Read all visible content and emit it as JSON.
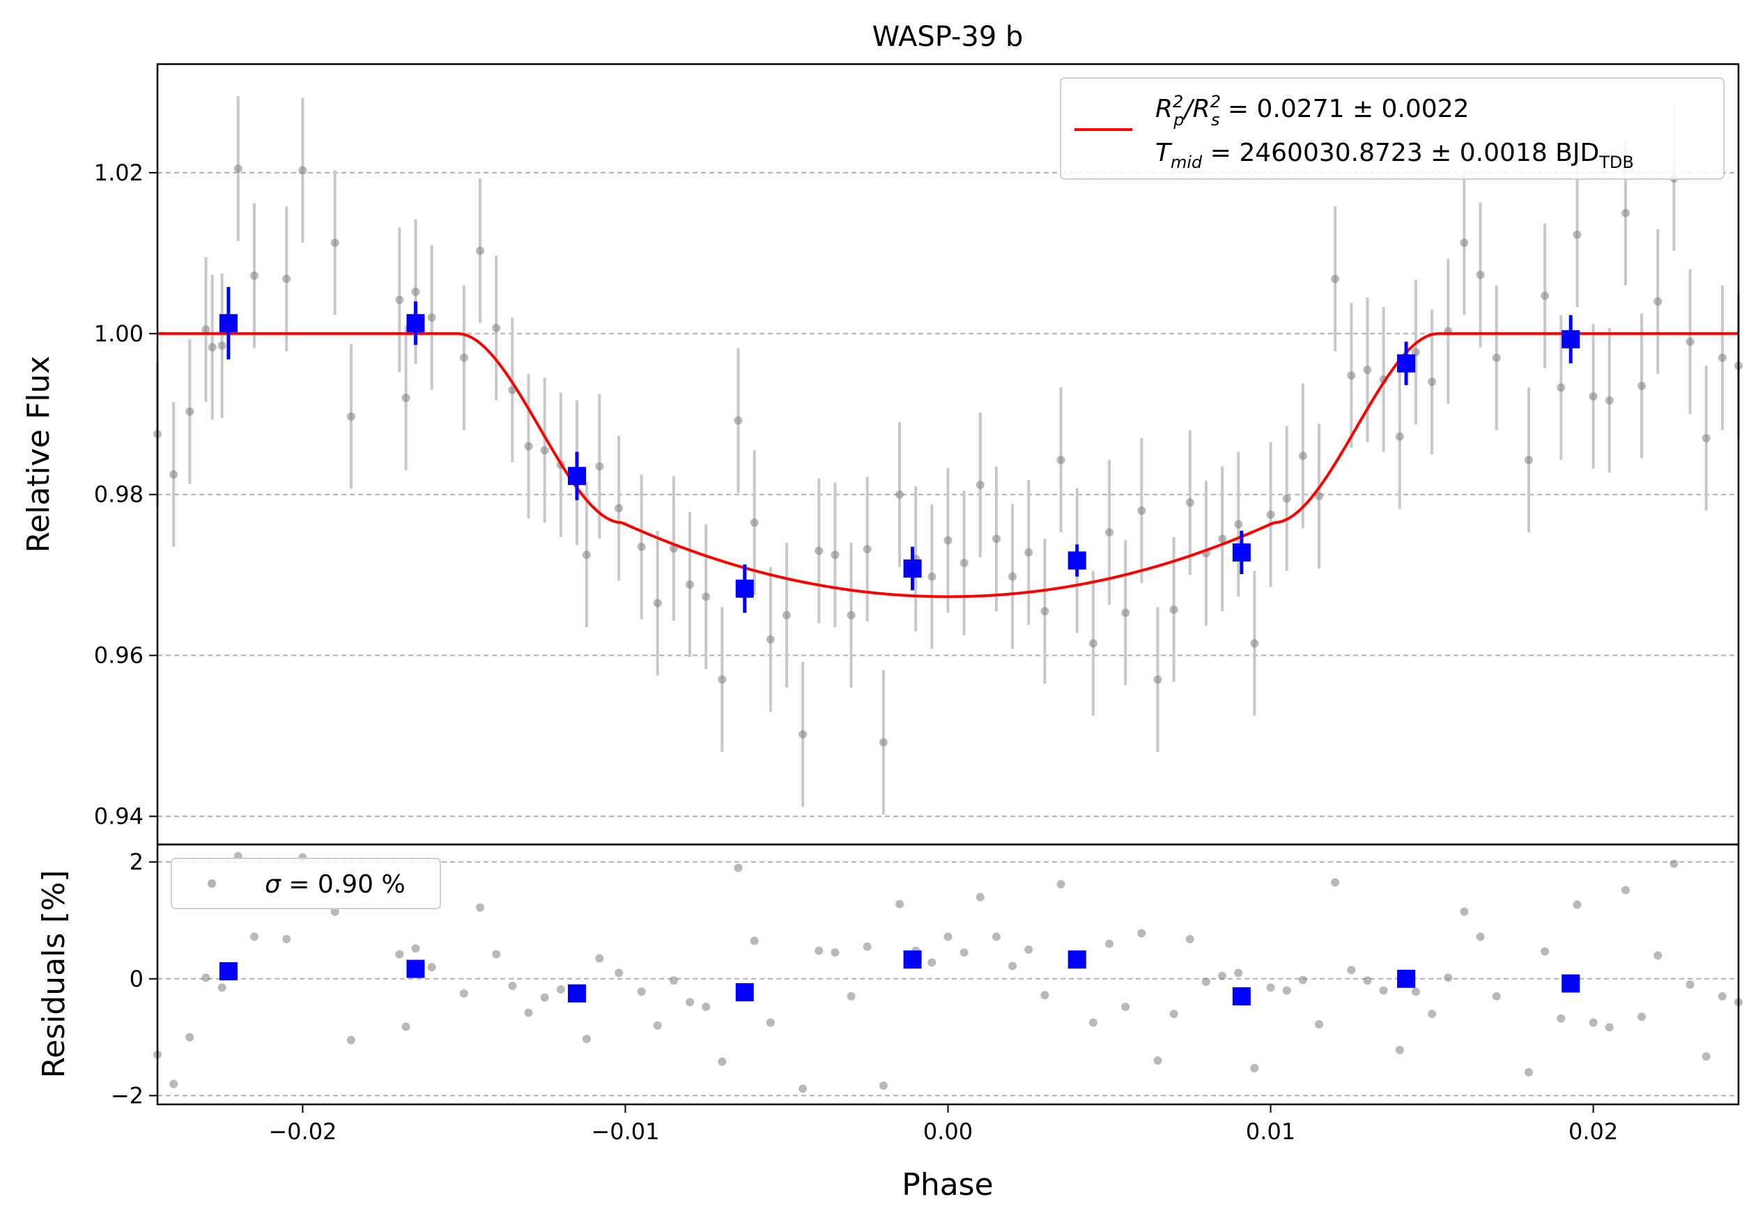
{
  "chart_data": [
    {
      "type": "scatter",
      "panel": "top",
      "title": "WASP-39 b",
      "ylabel": "Relative Flux",
      "xlim": [
        -0.0245,
        0.0245
      ],
      "ylim": [
        0.9365,
        1.0335
      ],
      "yticks": [
        0.94,
        0.96,
        0.98,
        1.0,
        1.02
      ],
      "ytick_labels": [
        "0.94",
        "0.96",
        "0.98",
        "1.00",
        "1.02"
      ],
      "grid": "horizontal dashed",
      "legend_position": "top-right",
      "legend": {
        "line1_pre": "R",
        "line1_sub1": "p",
        "line1_sup1": "2",
        "line1_mid": "/R",
        "line1_sub2": "s",
        "line1_sup2": "2",
        "line1_post": " = 0.0271 ± 0.0022",
        "line2_pre": "T",
        "line2_sub1": "mid",
        "line2_post": " = 2460030.8723 ± 0.0018 BJD",
        "line2_sub2": "TDB"
      },
      "colors": {
        "raw": "#808080",
        "raw_err": "#c8c8c8",
        "binned": "#0000ff",
        "model": "#ff0000",
        "grid": "#b0b0b0"
      },
      "model": {
        "name": "transit model",
        "baseline": 1.0,
        "depth_center": 0.9673,
        "ingress_start": -0.0152,
        "ingress_end": -0.0101,
        "egress_start": 0.0101,
        "egress_end": 0.0152,
        "limb_at_contact": 0.9765
      },
      "raw_series": [
        [
          -0.0245,
          0.9875,
          0.009
        ],
        [
          -0.024,
          0.9825,
          0.009
        ],
        [
          -0.0235,
          0.9903,
          0.009
        ],
        [
          -0.023,
          1.0005,
          0.009
        ],
        [
          -0.0228,
          0.9983,
          0.009
        ],
        [
          -0.0225,
          0.9985,
          0.009
        ],
        [
          -0.022,
          1.0205,
          0.009
        ],
        [
          -0.0215,
          1.0072,
          0.009
        ],
        [
          -0.0205,
          1.0068,
          0.009
        ],
        [
          -0.02,
          1.0203,
          0.009
        ],
        [
          -0.019,
          1.0113,
          0.009
        ],
        [
          -0.0185,
          0.9897,
          0.009
        ],
        [
          -0.017,
          1.0042,
          0.009
        ],
        [
          -0.0168,
          0.992,
          0.009
        ],
        [
          -0.0165,
          1.0052,
          0.009
        ],
        [
          -0.016,
          1.002,
          0.009
        ],
        [
          -0.015,
          0.997,
          0.009
        ],
        [
          -0.0145,
          1.0103,
          0.009
        ],
        [
          -0.014,
          1.0007,
          0.009
        ],
        [
          -0.0135,
          0.993,
          0.009
        ],
        [
          -0.013,
          0.986,
          0.009
        ],
        [
          -0.0125,
          0.9855,
          0.009
        ],
        [
          -0.012,
          0.9837,
          0.009
        ],
        [
          -0.0115,
          0.9827,
          0.009
        ],
        [
          -0.0112,
          0.9725,
          0.009
        ],
        [
          -0.0108,
          0.9835,
          0.009
        ],
        [
          -0.0102,
          0.9783,
          0.009
        ],
        [
          -0.0095,
          0.9735,
          0.009
        ],
        [
          -0.009,
          0.9665,
          0.009
        ],
        [
          -0.0085,
          0.9733,
          0.009
        ],
        [
          -0.008,
          0.9688,
          0.009
        ],
        [
          -0.0075,
          0.9673,
          0.009
        ],
        [
          -0.007,
          0.957,
          0.009
        ],
        [
          -0.0065,
          0.9892,
          0.009
        ],
        [
          -0.006,
          0.9765,
          0.009
        ],
        [
          -0.0055,
          0.962,
          0.009
        ],
        [
          -0.005,
          0.965,
          0.009
        ],
        [
          -0.0045,
          0.9502,
          0.009
        ],
        [
          -0.004,
          0.973,
          0.009
        ],
        [
          -0.0035,
          0.9725,
          0.009
        ],
        [
          -0.003,
          0.965,
          0.009
        ],
        [
          -0.0025,
          0.9732,
          0.009
        ],
        [
          -0.002,
          0.9492,
          0.009
        ],
        [
          -0.0015,
          0.98,
          0.009
        ],
        [
          -0.001,
          0.972,
          0.009
        ],
        [
          -0.0005,
          0.9698,
          0.009
        ],
        [
          0.0,
          0.9743,
          0.009
        ],
        [
          0.0005,
          0.9715,
          0.009
        ],
        [
          0.001,
          0.9812,
          0.009
        ],
        [
          0.0015,
          0.9745,
          0.009
        ],
        [
          0.002,
          0.9698,
          0.009
        ],
        [
          0.0025,
          0.9728,
          0.009
        ],
        [
          0.003,
          0.9655,
          0.009
        ],
        [
          0.0035,
          0.9843,
          0.009
        ],
        [
          0.004,
          0.9718,
          0.009
        ],
        [
          0.0045,
          0.9615,
          0.009
        ],
        [
          0.005,
          0.9753,
          0.009
        ],
        [
          0.0055,
          0.9653,
          0.009
        ],
        [
          0.006,
          0.978,
          0.009
        ],
        [
          0.0065,
          0.957,
          0.009
        ],
        [
          0.007,
          0.9657,
          0.009
        ],
        [
          0.0075,
          0.979,
          0.009
        ],
        [
          0.008,
          0.9727,
          0.009
        ],
        [
          0.0085,
          0.9745,
          0.009
        ],
        [
          0.009,
          0.9763,
          0.009
        ],
        [
          0.0095,
          0.9615,
          0.009
        ],
        [
          0.01,
          0.9775,
          0.009
        ],
        [
          0.0105,
          0.9795,
          0.009
        ],
        [
          0.011,
          0.9848,
          0.009
        ],
        [
          0.0115,
          0.9798,
          0.009
        ],
        [
          0.012,
          1.0068,
          0.009
        ],
        [
          0.0125,
          0.9948,
          0.009
        ],
        [
          0.013,
          0.9955,
          0.009
        ],
        [
          0.0135,
          0.9943,
          0.009
        ],
        [
          0.014,
          0.9872,
          0.009
        ],
        [
          0.0145,
          0.9977,
          0.009
        ],
        [
          0.015,
          0.994,
          0.009
        ],
        [
          0.0155,
          1.0003,
          0.009
        ],
        [
          0.016,
          1.0113,
          0.009
        ],
        [
          0.0165,
          1.0073,
          0.009
        ],
        [
          0.017,
          0.997,
          0.009
        ],
        [
          0.018,
          0.9843,
          0.009
        ],
        [
          0.0185,
          1.0047,
          0.009
        ],
        [
          0.019,
          0.9933,
          0.009
        ],
        [
          0.0195,
          1.0123,
          0.009
        ],
        [
          0.02,
          0.9922,
          0.009
        ],
        [
          0.0205,
          0.9917,
          0.009
        ],
        [
          0.021,
          1.015,
          0.009
        ],
        [
          0.0215,
          0.9935,
          0.009
        ],
        [
          0.022,
          1.004,
          0.009
        ],
        [
          0.0225,
          1.0193,
          0.009
        ],
        [
          0.023,
          0.999,
          0.009
        ],
        [
          0.0235,
          0.987,
          0.009
        ],
        [
          0.024,
          0.997,
          0.009
        ],
        [
          0.0245,
          0.996,
          0.009
        ]
      ],
      "binned_series": [
        [
          -0.0223,
          1.0013,
          0.0045
        ],
        [
          -0.0165,
          1.0013,
          0.0027
        ],
        [
          -0.0115,
          0.9823,
          0.003
        ],
        [
          -0.0063,
          0.9683,
          0.003
        ],
        [
          -0.0011,
          0.9708,
          0.0027
        ],
        [
          0.004,
          0.9718,
          0.002
        ],
        [
          0.0091,
          0.9728,
          0.0027
        ],
        [
          0.0142,
          0.9963,
          0.0027
        ],
        [
          0.0193,
          0.9993,
          0.003
        ]
      ]
    },
    {
      "type": "scatter",
      "panel": "bottom",
      "xlabel": "Phase",
      "ylabel": "Residuals [%]",
      "xlim": [
        -0.0245,
        0.0245
      ],
      "ylim": [
        -2.15,
        2.3
      ],
      "yticks": [
        -2,
        0,
        2
      ],
      "ytick_labels": [
        "−2",
        "0",
        "2"
      ],
      "xticks": [
        -0.02,
        -0.01,
        0.0,
        0.01,
        0.02
      ],
      "xtick_labels": [
        "−0.02",
        "−0.01",
        "0.00",
        "0.01",
        "0.02"
      ],
      "legend_position": "top-left",
      "legend": {
        "sigma_symbol": "σ",
        "sigma_text": " = 0.90 %"
      },
      "raw_series": [
        [
          -0.0245,
          -1.3
        ],
        [
          -0.024,
          -1.8
        ],
        [
          -0.0235,
          -1.0
        ],
        [
          -0.023,
          0.02
        ],
        [
          -0.0225,
          -0.15
        ],
        [
          -0.022,
          2.1
        ],
        [
          -0.0215,
          0.72
        ],
        [
          -0.0205,
          0.68
        ],
        [
          -0.02,
          2.08
        ],
        [
          -0.019,
          1.15
        ],
        [
          -0.0185,
          -1.05
        ],
        [
          -0.017,
          0.42
        ],
        [
          -0.0168,
          -0.82
        ],
        [
          -0.0165,
          0.52
        ],
        [
          -0.016,
          0.2
        ],
        [
          -0.015,
          -0.25
        ],
        [
          -0.0145,
          1.22
        ],
        [
          -0.014,
          0.42
        ],
        [
          -0.0135,
          -0.12
        ],
        [
          -0.013,
          -0.58
        ],
        [
          -0.0125,
          -0.32
        ],
        [
          -0.012,
          -0.18
        ],
        [
          -0.0112,
          -1.03
        ],
        [
          -0.0108,
          0.35
        ],
        [
          -0.0102,
          0.1
        ],
        [
          -0.0095,
          -0.22
        ],
        [
          -0.009,
          -0.8
        ],
        [
          -0.0085,
          -0.03
        ],
        [
          -0.008,
          -0.4
        ],
        [
          -0.0075,
          -0.48
        ],
        [
          -0.007,
          -1.42
        ],
        [
          -0.0065,
          1.9
        ],
        [
          -0.006,
          0.65
        ],
        [
          -0.0055,
          -0.75
        ],
        [
          -0.0045,
          -1.88
        ],
        [
          -0.004,
          0.48
        ],
        [
          -0.0035,
          0.45
        ],
        [
          -0.003,
          -0.3
        ],
        [
          -0.0025,
          0.55
        ],
        [
          -0.002,
          -1.83
        ],
        [
          -0.0015,
          1.28
        ],
        [
          -0.001,
          0.48
        ],
        [
          -0.0005,
          0.28
        ],
        [
          0.0,
          0.72
        ],
        [
          0.0005,
          0.45
        ],
        [
          0.001,
          1.4
        ],
        [
          0.0015,
          0.72
        ],
        [
          0.002,
          0.22
        ],
        [
          0.0025,
          0.5
        ],
        [
          0.003,
          -0.28
        ],
        [
          0.0035,
          1.62
        ],
        [
          0.004,
          0.35
        ],
        [
          0.0045,
          -0.75
        ],
        [
          0.005,
          0.6
        ],
        [
          0.0055,
          -0.48
        ],
        [
          0.006,
          0.78
        ],
        [
          0.0065,
          -1.4
        ],
        [
          0.007,
          -0.6
        ],
        [
          0.0075,
          0.68
        ],
        [
          0.008,
          -0.05
        ],
        [
          0.0085,
          0.05
        ],
        [
          0.009,
          0.1
        ],
        [
          0.0095,
          -1.53
        ],
        [
          0.01,
          -0.15
        ],
        [
          0.0105,
          -0.2
        ],
        [
          0.011,
          -0.02
        ],
        [
          0.0115,
          -0.78
        ],
        [
          0.012,
          1.65
        ],
        [
          0.0125,
          0.15
        ],
        [
          0.013,
          -0.03
        ],
        [
          0.0135,
          -0.2
        ],
        [
          0.014,
          -1.22
        ],
        [
          0.0145,
          -0.22
        ],
        [
          0.015,
          -0.6
        ],
        [
          0.0155,
          0.02
        ],
        [
          0.016,
          1.15
        ],
        [
          0.0165,
          0.72
        ],
        [
          0.017,
          -0.3
        ],
        [
          0.018,
          -1.6
        ],
        [
          0.0185,
          0.47
        ],
        [
          0.019,
          -0.68
        ],
        [
          0.0195,
          1.27
        ],
        [
          0.02,
          -0.75
        ],
        [
          0.0205,
          -0.83
        ],
        [
          0.021,
          1.52
        ],
        [
          0.0215,
          -0.65
        ],
        [
          0.022,
          0.4
        ],
        [
          0.0225,
          1.97
        ],
        [
          0.023,
          -0.1
        ],
        [
          0.0235,
          -1.33
        ],
        [
          0.024,
          -0.3
        ],
        [
          0.0245,
          -0.4
        ]
      ],
      "binned_series": [
        [
          -0.0223,
          0.13
        ],
        [
          -0.0165,
          0.17
        ],
        [
          -0.0115,
          -0.25
        ],
        [
          -0.0063,
          -0.23
        ],
        [
          -0.0011,
          0.33
        ],
        [
          0.004,
          0.33
        ],
        [
          0.0091,
          -0.3
        ],
        [
          0.0142,
          0.0
        ],
        [
          0.0193,
          -0.08
        ]
      ]
    }
  ]
}
